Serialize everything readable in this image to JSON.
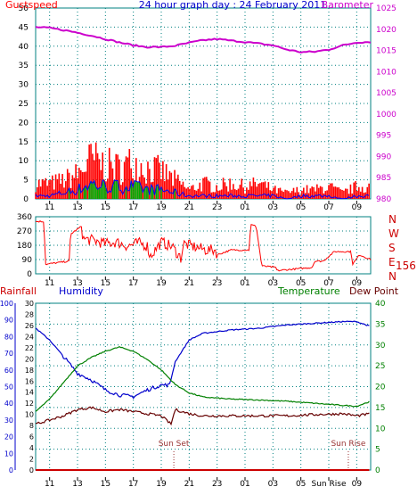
{
  "colors": {
    "gust": "#ff0000",
    "wind": "#0000ff",
    "wind_fill": "#00aa00",
    "barometer": "#cc00cc",
    "dir": "#ff0000",
    "axis": "#008080",
    "grid": "#008080",
    "humidity": "#0000cc",
    "temperature": "#008000",
    "dewpoint": "#660000",
    "rainfall": "#cc0000",
    "blue_axis": "#0000cc"
  },
  "chart_data": [
    {
      "type": "bar",
      "title": "24 hour graph day : 24 February 2011",
      "left_label": "Gustspeed",
      "right_label": "Barometer",
      "x_ticks": [
        "11",
        "13",
        "15",
        "17",
        "19",
        "21",
        "23",
        "01",
        "03",
        "05",
        "07",
        "09"
      ],
      "yleft_ticks": [
        "50",
        "45",
        "40",
        "35",
        "30",
        "25",
        "20",
        "15",
        "10",
        "5",
        "0"
      ],
      "yright_ticks": [
        "1025",
        "1020",
        "1015",
        "1010",
        "1005",
        "1000",
        "995",
        "990",
        "985",
        "980"
      ],
      "yleft_lim": [
        0,
        50
      ],
      "yright_lim": [
        980,
        1025
      ],
      "series": [
        {
          "name": "Barometer",
          "axis": "right",
          "x": [
            0,
            1,
            2,
            3,
            4,
            5,
            6,
            7,
            8,
            9,
            10,
            11,
            12,
            13,
            14,
            15,
            16,
            17,
            18,
            19,
            20,
            21,
            22,
            23,
            24
          ],
          "values": [
            1020.5,
            1020.3,
            1019.8,
            1019.2,
            1018.5,
            1017.7,
            1016.9,
            1016.2,
            1015.8,
            1015.8,
            1016.1,
            1016.8,
            1017.4,
            1017.7,
            1017.3,
            1017.0,
            1016.6,
            1016.2,
            1015.2,
            1014.6,
            1014.7,
            1015.2,
            1016.2,
            1016.9,
            1017.0
          ]
        },
        {
          "name": "Gustspeed",
          "axis": "left",
          "x": [
            0,
            1,
            2,
            3,
            4,
            5,
            6,
            7,
            8,
            9,
            10,
            11,
            12,
            13,
            14,
            15,
            16,
            17,
            18,
            19,
            20,
            21,
            22,
            23,
            24
          ],
          "values": [
            5,
            5,
            6,
            8,
            13,
            11,
            10,
            12,
            10,
            9,
            6,
            3,
            5,
            4,
            5,
            4,
            5,
            3,
            2,
            3,
            3,
            4,
            2,
            4,
            4
          ]
        },
        {
          "name": "Windspeed",
          "axis": "left",
          "x": [
            0,
            1,
            2,
            3,
            4,
            5,
            6,
            7,
            8,
            9,
            10,
            11,
            12,
            13,
            14,
            15,
            16,
            17,
            18,
            19,
            20,
            21,
            22,
            23,
            24
          ],
          "values": [
            1,
            1,
            2,
            3,
            5,
            4,
            4,
            4,
            3,
            3,
            2,
            1,
            1,
            1,
            1,
            1,
            1,
            1,
            0,
            1,
            1,
            1,
            0,
            1,
            1
          ]
        }
      ]
    },
    {
      "type": "line",
      "x_ticks": [
        "11",
        "13",
        "15",
        "17",
        "19",
        "21",
        "23",
        "01",
        "03",
        "05",
        "07",
        "09"
      ],
      "y_ticks": [
        "360",
        "270",
        "180",
        "90",
        "0"
      ],
      "ylim": [
        0,
        360
      ],
      "compass": [
        "N",
        "W",
        "S",
        "E",
        "N"
      ],
      "current_direction": "156°",
      "series": [
        {
          "name": "Wind direction",
          "x": [
            0,
            0.6,
            0.7,
            2.4,
            2.5,
            3.3,
            3.4,
            4.2,
            5.0,
            5.8,
            6.6,
            7.4,
            8.0,
            8.2,
            9.0,
            9.8,
            10.4,
            10.6,
            11.4,
            12.2,
            12.9,
            13.0,
            14.0,
            15.3,
            15.4,
            15.8,
            16.2,
            17.2,
            17.3,
            19.8,
            20.0,
            20.6,
            21.4,
            22.6,
            22.7,
            23.2,
            24
          ],
          "values": [
            330,
            330,
            60,
            80,
            250,
            300,
            220,
            210,
            190,
            200,
            175,
            195,
            175,
            110,
            200,
            170,
            100,
            190,
            170,
            150,
            150,
            120,
            150,
            150,
            310,
            300,
            50,
            40,
            20,
            40,
            80,
            80,
            140,
            140,
            60,
            120,
            90
          ]
        }
      ]
    },
    {
      "type": "line",
      "labels": {
        "rainfall": "Rainfall",
        "humidity": "Humidity",
        "temperature": "Temperature",
        "dewpoint": "Dew Point"
      },
      "x_ticks": [
        "11",
        "13",
        "15",
        "17",
        "19",
        "21",
        "23",
        "01",
        "03",
        "05",
        "Sun Rise",
        "09"
      ],
      "y_rain_ticks": [
        "30",
        "28",
        "26",
        "24",
        "22",
        "20",
        "18",
        "16",
        "14",
        "12",
        "10",
        "8",
        "6",
        "4",
        "2",
        "0"
      ],
      "y_hum_ticks": [
        "100",
        "90",
        "80",
        "70",
        "60",
        "50",
        "40",
        "30",
        "20",
        "10",
        "0"
      ],
      "y_temp_ticks": [
        "40",
        "35",
        "30",
        "25",
        "20",
        "15",
        "10",
        "5",
        "0"
      ],
      "events": [
        {
          "label": "Sun Set",
          "x": 9.9
        },
        {
          "label": "Sun Rise",
          "x": 22.4
        }
      ],
      "series": [
        {
          "name": "Humidity",
          "axis": "humidity",
          "ylim": [
            0,
            100
          ],
          "x": [
            0,
            1,
            2,
            3,
            4,
            5,
            6,
            7,
            8,
            9,
            9.6,
            10,
            11,
            12,
            14,
            16,
            18,
            20,
            22,
            23,
            24
          ],
          "values": [
            85,
            78,
            68,
            58,
            54,
            48,
            45,
            44,
            48,
            51,
            51,
            65,
            78,
            82,
            84,
            85,
            87,
            88,
            89,
            89,
            86
          ]
        },
        {
          "name": "Temperature",
          "axis": "temperature",
          "ylim": [
            0,
            40
          ],
          "x": [
            0,
            1,
            2,
            3,
            4,
            5,
            6,
            7,
            8,
            9,
            10,
            11,
            12,
            14,
            16,
            18,
            20,
            22,
            23,
            24
          ],
          "values": [
            14.0,
            17.0,
            21.0,
            25.0,
            27.0,
            28.5,
            29.5,
            28.5,
            26.5,
            24.0,
            20.5,
            18.5,
            17.5,
            17.0,
            16.8,
            16.5,
            16.0,
            15.5,
            15.3,
            16.5
          ]
        },
        {
          "name": "Dew Point",
          "axis": "temperature",
          "ylim": [
            0,
            40
          ],
          "x": [
            0,
            1,
            2,
            3,
            4,
            5,
            6,
            7,
            8,
            9,
            9.7,
            10,
            11,
            12,
            14,
            16,
            18,
            20,
            22,
            23,
            24
          ],
          "values": [
            11.0,
            12.0,
            13.0,
            14.5,
            15.0,
            14.0,
            14.5,
            14.0,
            13.5,
            13.0,
            11.0,
            14.5,
            13.5,
            13.0,
            13.0,
            13.0,
            13.0,
            13.3,
            13.5,
            13.0,
            13.5
          ]
        },
        {
          "name": "Rainfall",
          "axis": "rainfall",
          "ylim": [
            0,
            30
          ],
          "x": [
            0,
            24
          ],
          "values": [
            0,
            0
          ]
        }
      ]
    }
  ]
}
